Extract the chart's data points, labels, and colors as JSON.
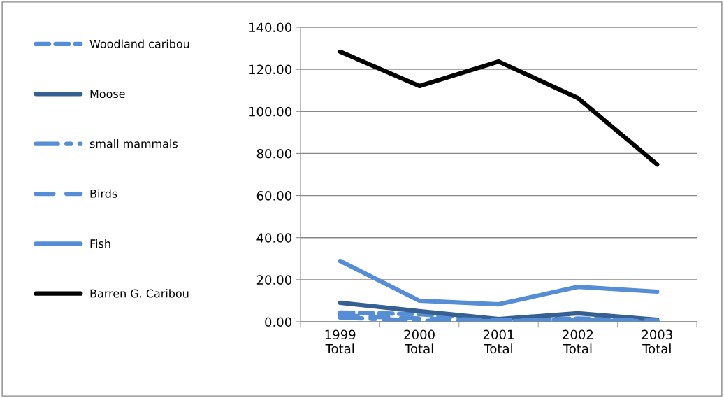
{
  "chart_data": {
    "type": "line",
    "categories": [
      "1999\nTotal",
      "2000\nTotal",
      "2001\nTotal",
      "2002\nTotal",
      "2003\nTotal"
    ],
    "series": [
      {
        "name": "Woodland caribou",
        "color": "#558ed5",
        "line_style": "dashed",
        "values": [
          4.4,
          3.6,
          1.0,
          1.5,
          0.5
        ]
      },
      {
        "name": "Moose",
        "color": "#376092",
        "line_style": "solid",
        "values": [
          9.0,
          5.0,
          1.3,
          4.0,
          1.0
        ]
      },
      {
        "name": "small mammals",
        "color": "#558ed5",
        "line_style": "dashdot",
        "values": [
          2.0,
          0.5,
          0.3,
          0.5,
          0.3
        ]
      },
      {
        "name": "Birds",
        "color": "#558ed5",
        "line_style": "longdash",
        "values": [
          3.0,
          1.5,
          0.8,
          1.0,
          0.5
        ]
      },
      {
        "name": "Fish",
        "color": "#558ed5",
        "line_style": "solid",
        "values": [
          28.9,
          10.0,
          8.3,
          16.6,
          14.3
        ]
      },
      {
        "name": "Barren G. Caribou",
        "color": "#000000",
        "line_style": "solid",
        "values": [
          128.4,
          112.1,
          123.7,
          106.4,
          74.8
        ]
      }
    ],
    "ylim": [
      0,
      140
    ],
    "yticks": [
      {
        "value": 0,
        "label": "0.00"
      },
      {
        "value": 20,
        "label": "20.00"
      },
      {
        "value": 40,
        "label": "40.00"
      },
      {
        "value": 60,
        "label": "60.00"
      },
      {
        "value": 80,
        "label": "80.00"
      },
      {
        "value": 100,
        "label": "100.00"
      },
      {
        "value": 120,
        "label": "120.00"
      },
      {
        "value": 140,
        "label": "140.00"
      }
    ],
    "grid": "y",
    "legend": "left"
  }
}
